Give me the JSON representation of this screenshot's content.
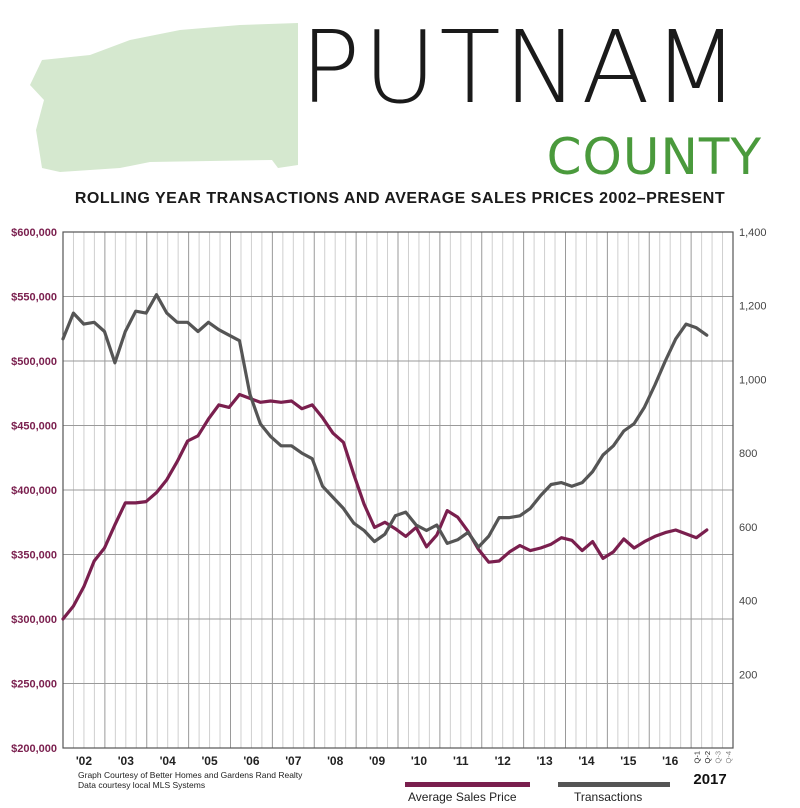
{
  "header": {
    "title": "PUTNAM",
    "subtitle_word": "COUNTY",
    "chart_title": "ROLLING YEAR TRANSACTIONS AND AVERAGE SALES PRICES 2002–PRESENT"
  },
  "footer": {
    "credit_line1": "Graph Courtesy of Better Homes and Gardens Rand Realty",
    "credit_line2": "Data courtesy local MLS Systems"
  },
  "colors": {
    "price_line": "#7a1f4e",
    "transactions_line": "#555555",
    "county_shape": "#d5e8cf",
    "county_text": "#4a9a3c",
    "tick_price": "#7a1f4e",
    "tick_transactions": "#444444"
  },
  "chart_data": {
    "type": "line",
    "title": "ROLLING YEAR TRANSACTIONS AND AVERAGE SALES PRICES 2002–PRESENT",
    "x_tick_labels": [
      "'02",
      "'03",
      "'04",
      "'05",
      "'06",
      "'07",
      "'08",
      "'09",
      "'10",
      "'11",
      "'12",
      "'13",
      "'14",
      "'15",
      "'16"
    ],
    "x_final_year_label": "2017",
    "x_quarter_labels": [
      "Q-1",
      "Q-2",
      "Q-3",
      "Q-4"
    ],
    "y_left": {
      "ylim": [
        200000,
        600000
      ],
      "tick_values": [
        200000,
        250000,
        300000,
        350000,
        400000,
        450000,
        500000,
        550000,
        600000
      ],
      "tick_labels": [
        "$200,000",
        "$250,000",
        "$300,000",
        "$350,000",
        "$400,000",
        "$450,000",
        "$500,000",
        "$550,000",
        "$600,000"
      ]
    },
    "y_right": {
      "ylim": [
        0,
        1400
      ],
      "tick_values": [
        200,
        400,
        600,
        800,
        1000,
        1200,
        1400
      ],
      "tick_labels": [
        "200",
        "400",
        "600",
        "800",
        "1,000",
        "1,200",
        "1,400"
      ]
    },
    "legend_placement": "bottom",
    "grid": true,
    "series": [
      {
        "name": "Average Sales Price",
        "axis": "left",
        "values": [
          300000,
          310000,
          325000,
          345000,
          355000,
          373000,
          390000,
          390000,
          391000,
          398000,
          408000,
          422000,
          438000,
          442000,
          455000,
          466000,
          464000,
          474000,
          471000,
          468000,
          469000,
          468000,
          469000,
          463000,
          466000,
          456000,
          444000,
          437000,
          412000,
          389000,
          371000,
          375000,
          370000,
          364000,
          371000,
          356000,
          365000,
          384000,
          379000,
          368000,
          354000,
          344000,
          345000,
          352000,
          357000,
          353000,
          355000,
          358000,
          363000,
          361000,
          353000,
          360000,
          347000,
          352000,
          362000,
          355000,
          360000,
          364000,
          367000,
          369000,
          366000,
          363000,
          369000
        ]
      },
      {
        "name": "Transactions",
        "axis": "right",
        "values": [
          1110,
          1180,
          1150,
          1155,
          1130,
          1045,
          1130,
          1185,
          1180,
          1230,
          1180,
          1155,
          1155,
          1130,
          1155,
          1135,
          1120,
          1105,
          960,
          880,
          845,
          820,
          820,
          800,
          785,
          710,
          680,
          650,
          610,
          590,
          560,
          580,
          630,
          640,
          605,
          590,
          605,
          555,
          565,
          585,
          545,
          575,
          625,
          625,
          630,
          650,
          685,
          715,
          720,
          710,
          720,
          750,
          795,
          820,
          860,
          880,
          925,
          985,
          1050,
          1110,
          1150,
          1140,
          1120
        ]
      }
    ]
  }
}
